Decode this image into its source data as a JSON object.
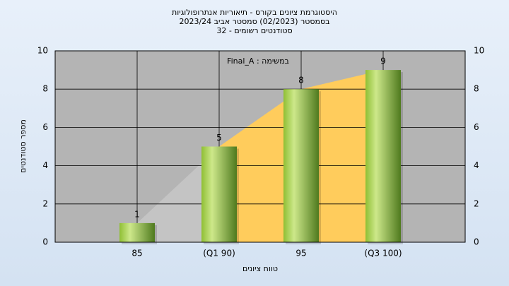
{
  "chart_data": {
    "type": "bar",
    "title": [
      "היסטוגרמת ציונים בקורס - תיאוריות אנתרופולוגיות",
      "בסמסטר  (02/2023)  סמסטר אביב 2023/24",
      "סטודנטים רשומים - 32"
    ],
    "annotation": "Final_A : במשימה",
    "x_label": "טווח ציונים",
    "y_label": "מספר סטודנטים",
    "categories": [
      "85",
      "(Q1 90)",
      "95",
      "(Q3 100)"
    ],
    "values": [
      1,
      5,
      8,
      9
    ],
    "color": "#a8d04c",
    "area_colors": [
      "#c4c4c4",
      "#ffcc5c"
    ],
    "ylim": [
      0,
      10
    ],
    "yticks": [
      0,
      2,
      4,
      6,
      8,
      10
    ],
    "grid": true
  }
}
